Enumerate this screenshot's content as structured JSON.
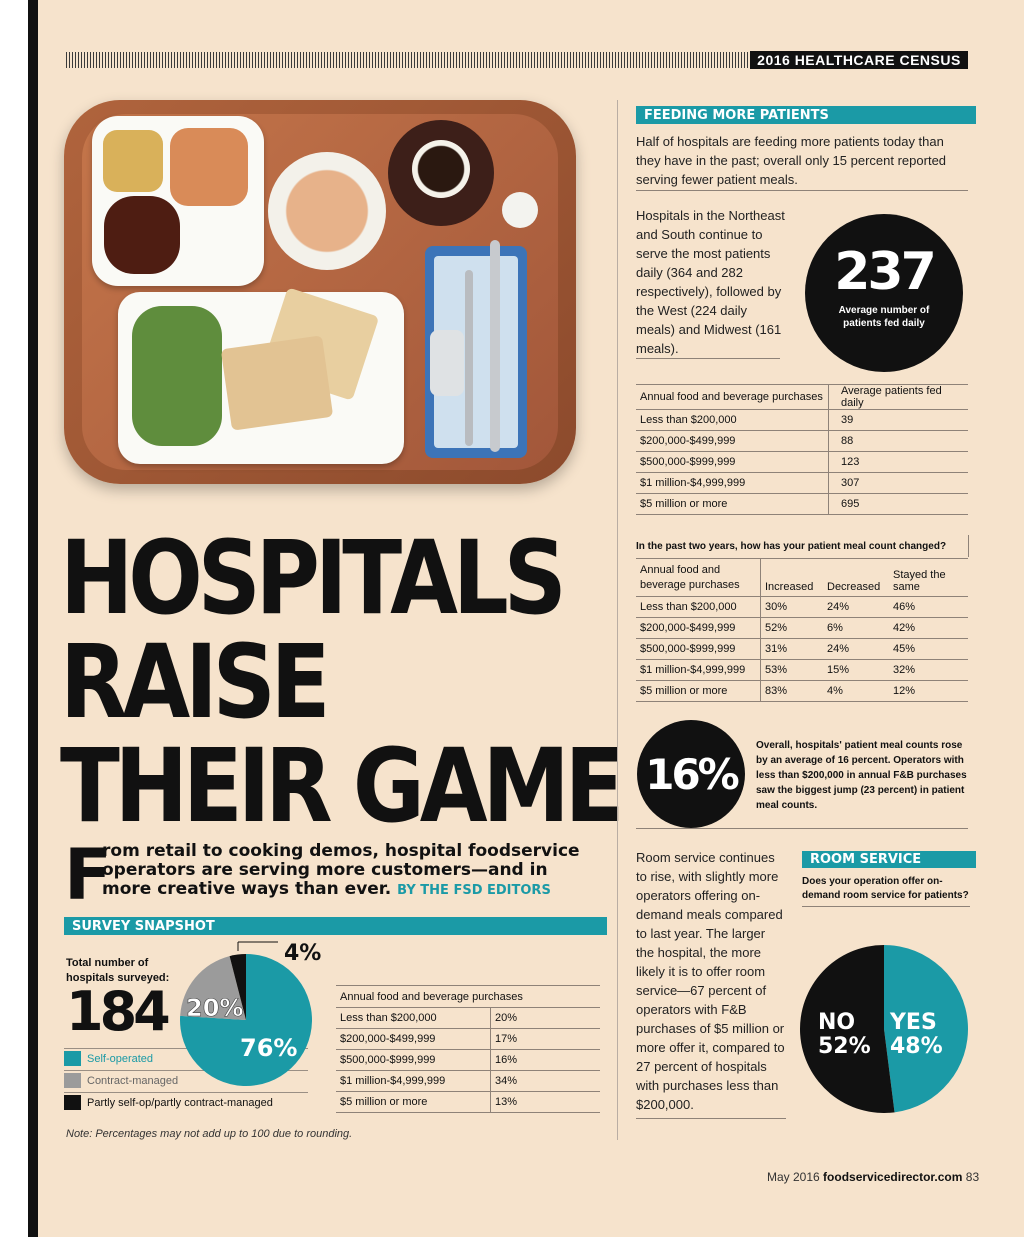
{
  "header": {
    "census_tag": "2016 HEALTHCARE CENSUS"
  },
  "headline": {
    "lines": [
      "HOSPITALS",
      "RAISE",
      "THEIR GAME"
    ]
  },
  "deck": {
    "drop_cap": "F",
    "text": "rom retail to cooking demos, hospital foodservice operators are serving more customers—and in more creative ways than ever.",
    "byline": "BY THE FSD EDITORS"
  },
  "survey": {
    "title": "SURVEY SNAPSHOT",
    "total_label_line1": "Total number of",
    "total_label_line2": "hospitals surveyed:",
    "total": "184",
    "legend": [
      {
        "label": "Self-operated",
        "color": "#1b9aa6"
      },
      {
        "label": "Contract-managed",
        "color": "#9b9b9b"
      },
      {
        "label": "Partly self-op/partly contract-managed",
        "color": "#111111"
      }
    ],
    "pie": [
      {
        "label": "76%",
        "value": 76,
        "color": "#1b9aa6"
      },
      {
        "label": "20%",
        "value": 20,
        "color": "#9b9b9b"
      },
      {
        "label": "4%",
        "value": 4,
        "color": "#111111"
      }
    ],
    "purchase_table": {
      "header": "Annual food and beverage purchases",
      "rows": [
        [
          "Less than $200,000",
          "20%"
        ],
        [
          "$200,000-$499,999",
          "17%"
        ],
        [
          "$500,000-$999,999",
          "16%"
        ],
        [
          "$1 million-$4,999,999",
          "34%"
        ],
        [
          "$5 million or more",
          "13%"
        ]
      ]
    },
    "note": "Note: Percentages may not add up to 100 due to rounding."
  },
  "feeding": {
    "title": "FEEDING MORE PATIENTS",
    "para1": "Half of hospitals are feeding more patients today than they have in the past; overall only 15 percent reported serving fewer patient meals.",
    "para2": "Hospitals in the Northeast and South continue to serve the most patients daily (364 and 282 respectively), followed by the West (224 daily meals) and Midwest (161 meals).",
    "stat_value": "237",
    "stat_caption_line1": "Average number of",
    "stat_caption_line2": "patients fed daily",
    "table1": {
      "headers": [
        "Annual food and beverage purchases",
        "Average patients fed daily"
      ],
      "rows": [
        [
          "Less than $200,000",
          "39"
        ],
        [
          "$200,000-$499,999",
          "88"
        ],
        [
          "$500,000-$999,999",
          "123"
        ],
        [
          "$1 million-$4,999,999",
          "307"
        ],
        [
          "$5 million or more",
          "695"
        ]
      ]
    },
    "table2": {
      "title": "In the past two years, how has your patient meal count changed?",
      "header_line1": "Annual food and",
      "header_line2": "beverage purchases",
      "headers": [
        "Increased",
        "Decreased",
        "Stayed the same"
      ],
      "rows": [
        [
          "Less than $200,000",
          "30%",
          "24%",
          "46%"
        ],
        [
          "$200,000-$499,999",
          "52%",
          "6%",
          "42%"
        ],
        [
          "$500,000-$999,999",
          "31%",
          "24%",
          "45%"
        ],
        [
          "$1 million-$4,999,999",
          "53%",
          "15%",
          "32%"
        ],
        [
          "$5 million or more",
          "83%",
          "4%",
          "12%"
        ]
      ]
    },
    "stat2_value": "16%",
    "stat2_text": "Overall, hospitals' patient meal counts rose by an average of 16 percent. Operators with less than $200,000 in annual F&B purchases saw the biggest jump (23 percent) in patient meal counts."
  },
  "room_service": {
    "para": "Room service continues to rise, with slightly more operators offering on-demand meals compared to last year. The larger the hospital, the more likely it is to offer room service—67 percent of operators with F&B purchases of $5 million or more offer it, compared to 27 percent of hospitals with purchases less than $200,000.",
    "title": "ROOM SERVICE",
    "question": "Does your operation offer on-demand room service for patients?",
    "no_label": "NO",
    "no_value": "52%",
    "yes_label": "YES",
    "yes_value": "48%",
    "pie": [
      {
        "label": "YES",
        "value": 48,
        "color": "#1b9aa6"
      },
      {
        "label": "NO",
        "value": 52,
        "color": "#111111"
      }
    ]
  },
  "footer": {
    "date": "May 2016",
    "site": "foodservicedirector.com",
    "page": "83"
  }
}
